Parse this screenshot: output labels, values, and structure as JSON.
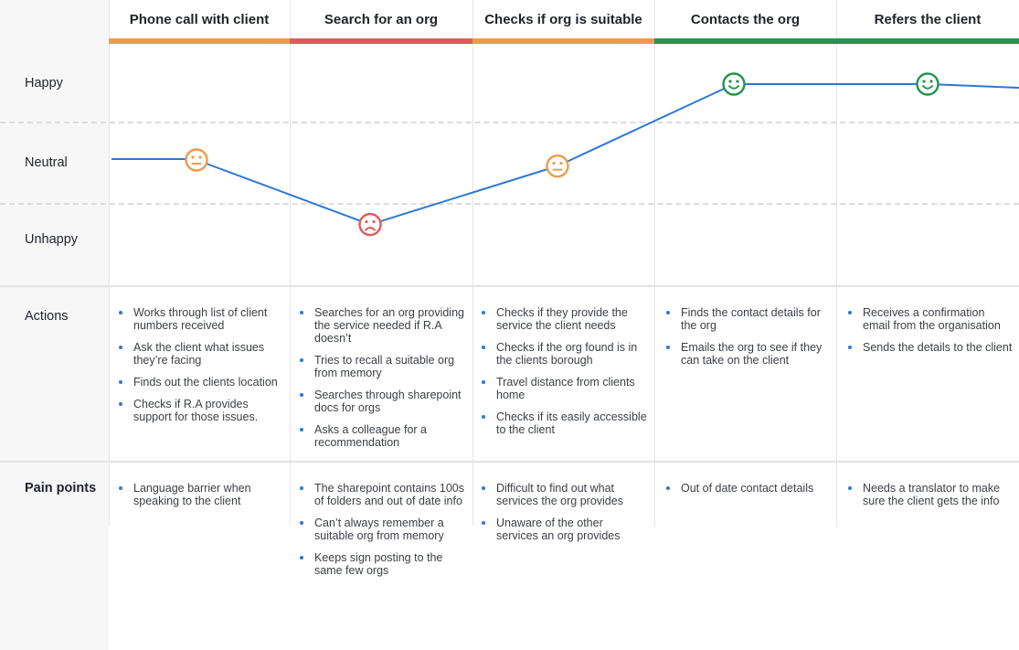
{
  "stages": [
    {
      "title": "Phone call with client",
      "color": "#ef9a4a"
    },
    {
      "title": "Search for an org",
      "color": "#e05a5a"
    },
    {
      "title": "Checks if org is suitable",
      "color": "#ef9a4a"
    },
    {
      "title": "Contacts the org",
      "color": "#24944f"
    },
    {
      "title": "Refers the client",
      "color": "#24944f"
    }
  ],
  "emotion_levels": {
    "happy": "Happy",
    "neutral": "Neutral",
    "unhappy": "Unhappy"
  },
  "row_labels": {
    "actions": "Actions",
    "pain_points": "Pain points"
  },
  "chart_data": {
    "type": "line",
    "categories": [
      "Phone call with client",
      "Search for an org",
      "Checks if org is suitable",
      "Contacts the org",
      "Refers the client"
    ],
    "y_levels": [
      "Unhappy",
      "Neutral",
      "Happy"
    ],
    "values": [
      0.0,
      -0.85,
      -0.08,
      1.0,
      1.0
    ],
    "line_color": "#2d78d6",
    "face_colors": {
      "happy": "#24944f",
      "neutral": "#ef9a4a",
      "unhappy": "#e05a5a"
    }
  },
  "actions": [
    [
      "Works through list of client numbers received",
      "Ask the client what issues they’re facing",
      "Finds out the clients location",
      "Checks if R.A provides support for those issues."
    ],
    [
      "Searches for an org providing the service needed if R.A doesn’t",
      "Tries to recall a suitable org from memory",
      "Searches through sharepoint docs for orgs",
      "Asks a colleague for a recommendation"
    ],
    [
      "Checks if they provide the service the client needs",
      "Checks if the org found is in the clients borough",
      "Travel distance from clients home",
      "Checks if its easily accessible to the client"
    ],
    [
      "Finds the contact details for the org",
      "Emails the org to see if they can take on the client"
    ],
    [
      "Receives a confirmation email from the organisation",
      "Sends the details to the client"
    ]
  ],
  "pain_points": [
    [
      "Language barrier when speaking to the client"
    ],
    [
      "The sharepoint contains 100s of folders and out of date info",
      "Can’t always remember a suitable org from memory",
      "Keeps sign posting to the same few orgs"
    ],
    [
      "Difficult to find out what services the org provides",
      "Unaware of the other services an org provides"
    ],
    [
      "Out of date contact details"
    ],
    [
      "Needs a translator to make sure the client gets the info"
    ]
  ]
}
